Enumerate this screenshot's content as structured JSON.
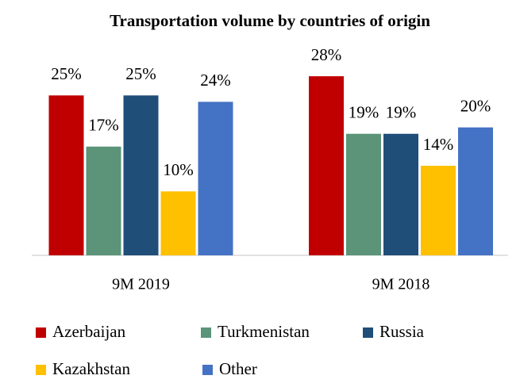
{
  "chart_data": {
    "type": "bar",
    "title": "Transportation volume by countries of origin",
    "categories": [
      "9M 2019",
      "9M 2018"
    ],
    "series": [
      {
        "name": "Azerbaijan",
        "color": "#c00000",
        "values": [
          25,
          28
        ],
        "value_labels": [
          "25%",
          "28%"
        ]
      },
      {
        "name": "Turkmenistan",
        "color": "#5b9479",
        "values": [
          17,
          19
        ],
        "value_labels": [
          "17%",
          "19%"
        ]
      },
      {
        "name": "Russia",
        "color": "#1f4e79",
        "values": [
          25,
          19
        ],
        "value_labels": [
          "25%",
          "19%"
        ]
      },
      {
        "name": "Kazakhstan",
        "color": "#ffc000",
        "values": [
          10,
          14
        ],
        "value_labels": [
          "10%",
          "14%"
        ]
      },
      {
        "name": "Other",
        "color": "#4472c4",
        "values": [
          24,
          20
        ],
        "value_labels": [
          "24%",
          "20%"
        ]
      }
    ],
    "ylim": [
      0,
      30
    ]
  }
}
